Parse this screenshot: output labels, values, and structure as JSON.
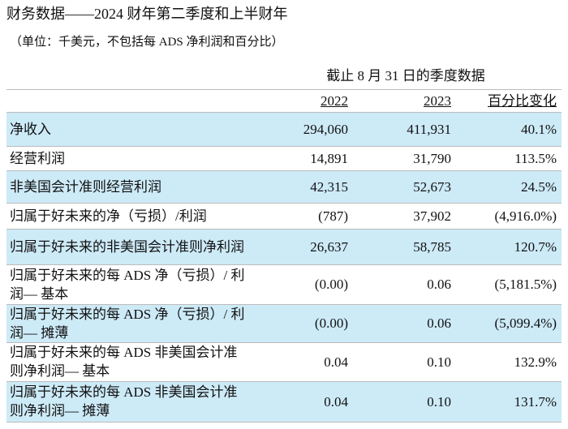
{
  "header": {
    "title": "财务数据——2024 财年第二季度和上半财年",
    "subtitle": "（单位：千美元，不包括每 ADS 净利润和百分比）"
  },
  "table": {
    "group_header": "截止 8 月 31 日的季度数据",
    "columns": [
      "2022",
      "2023",
      "百分比变化"
    ],
    "rows": [
      [
        "净收入",
        "294,060",
        "411,931",
        "40.1%"
      ],
      [
        "经营利润",
        "14,891",
        "31,790",
        "113.5%"
      ],
      [
        "非美国会计准则经营利润",
        "42,315",
        "52,673",
        "24.5%"
      ],
      [
        "归属于好未来的净（亏损）/利润",
        "(787)",
        "37,902",
        "(4,916.0%)"
      ],
      [
        "归属于好未来的非美国会计准则净利润",
        "26,637",
        "58,785",
        "120.7%"
      ],
      [
        "归属于好未来的每 ADS 净（亏损）/ 利润— 基本",
        "(0.00)",
        "0.06",
        "(5,181.5%)"
      ],
      [
        "归属于好未来的每 ADS 净（亏损）/ 利润— 摊薄",
        "(0.00)",
        "0.06",
        "(5,099.4%)"
      ],
      [
        "归属于好未来的每 ADS 非美国会计准 则净利润— 基本",
        "0.04",
        "0.10",
        "132.9%"
      ],
      [
        "归属于好未来的每 ADS 非美国会计准 则净利润— 摊薄",
        "0.04",
        "0.10",
        "131.7%"
      ]
    ]
  }
}
